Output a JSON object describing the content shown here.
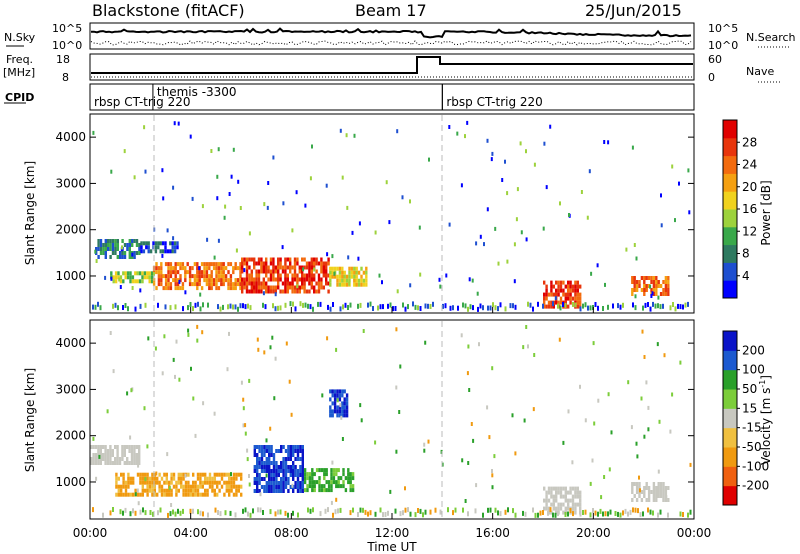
{
  "header": {
    "station": "Blackstone (fitACF)",
    "beam": "Beam 17",
    "date": "25/Jun/2015"
  },
  "sky_panel": {
    "left_label": "N.Sky",
    "right_label": "N.Search",
    "left_ticks": [
      "10^5",
      "10^0"
    ],
    "right_ticks": [
      "10^5",
      "10^0"
    ]
  },
  "freq_panel": {
    "left_label_1": "Freq.",
    "left_label_2": "[MHz]",
    "right_label": "Nave",
    "left_ticks": [
      "18",
      "8"
    ],
    "right_ticks": [
      "60",
      "0"
    ]
  },
  "cpid_panel": {
    "label": "CPID",
    "segments": [
      {
        "label": "rbsp CT-trig 220",
        "start_hour": 0.0
      },
      {
        "label": "themis -3300",
        "start_hour": 2.5
      },
      {
        "label": "rbsp CT-trig 220",
        "start_hour": 14.0
      }
    ]
  },
  "time_axis": {
    "label": "Time UT",
    "ticks": [
      "00:00",
      "04:00",
      "08:00",
      "12:00",
      "16:00",
      "20:00",
      "00:00"
    ]
  },
  "power_panel": {
    "ylabel": "Slant Range [km]",
    "yticks": [
      "1000",
      "2000",
      "3000",
      "4000"
    ],
    "colorbar_label": "Power [dB]",
    "colorbar_ticks": [
      "4",
      "8",
      "12",
      "16",
      "20",
      "24",
      "28"
    ],
    "colors": [
      "#0000ff",
      "#1e4fd0",
      "#2e7a60",
      "#39a84a",
      "#9dd23c",
      "#f0d21e",
      "#f5a011",
      "#f36b0e",
      "#e8350c",
      "#e00000"
    ]
  },
  "velocity_panel": {
    "ylabel": "Slant Range [km]",
    "yticks": [
      "1000",
      "2000",
      "3000",
      "4000"
    ],
    "colorbar_label": "Velocity [m s",
    "colorbar_label_sup": "-1",
    "colorbar_ticks": [
      "200",
      "100",
      "50",
      "15",
      "-15",
      "-50",
      "-100",
      "-200"
    ],
    "colors": [
      "#0a14c8",
      "#1c5ad0",
      "#2aa02a",
      "#7ccd3a",
      "#c8c8c0",
      "#f0c040",
      "#f09a10",
      "#f06010",
      "#e00000"
    ]
  },
  "chart_data": {
    "type": "heatmap",
    "x_range_hours": [
      0,
      24
    ],
    "slant_range_km": [
      200,
      4500
    ],
    "power_regions": [
      {
        "t0": 0.2,
        "t1": 2.0,
        "r0": 1400,
        "r1": 1800,
        "level": 3
      },
      {
        "t0": 2.0,
        "t1": 3.5,
        "r0": 1500,
        "r1": 1750,
        "level": 2
      },
      {
        "t0": 0.8,
        "t1": 2.5,
        "r0": 900,
        "r1": 1100,
        "level": 5
      },
      {
        "t0": 2.5,
        "t1": 6.0,
        "r0": 700,
        "r1": 1300,
        "level": 8
      },
      {
        "t0": 6.0,
        "t1": 9.5,
        "r0": 700,
        "r1": 1400,
        "level": 9
      },
      {
        "t0": 9.5,
        "t1": 11.0,
        "r0": 800,
        "r1": 1200,
        "level": 6
      },
      {
        "t0": 18.0,
        "t1": 19.5,
        "r0": 300,
        "r1": 900,
        "level": 9
      },
      {
        "t0": 21.5,
        "t1": 23.0,
        "r0": 600,
        "r1": 1000,
        "level": 8
      }
    ],
    "velocity_regions": [
      {
        "t0": 0.0,
        "t1": 2.0,
        "r0": 1400,
        "r1": 1800,
        "v": 0
      },
      {
        "t0": 1.0,
        "t1": 6.0,
        "r0": 700,
        "r1": 1200,
        "v": -60
      },
      {
        "t0": 6.5,
        "t1": 8.5,
        "r0": 800,
        "r1": 1800,
        "v": 200
      },
      {
        "t0": 8.5,
        "t1": 10.5,
        "r0": 800,
        "r1": 1300,
        "v": 60
      },
      {
        "t0": 9.5,
        "t1": 10.2,
        "r0": 2400,
        "r1": 3000,
        "v": 200
      },
      {
        "t0": 18.0,
        "t1": 19.5,
        "r0": 300,
        "r1": 900,
        "v": 0
      },
      {
        "t0": 21.5,
        "t1": 23.0,
        "r0": 600,
        "r1": 1000,
        "v": 0
      }
    ]
  }
}
